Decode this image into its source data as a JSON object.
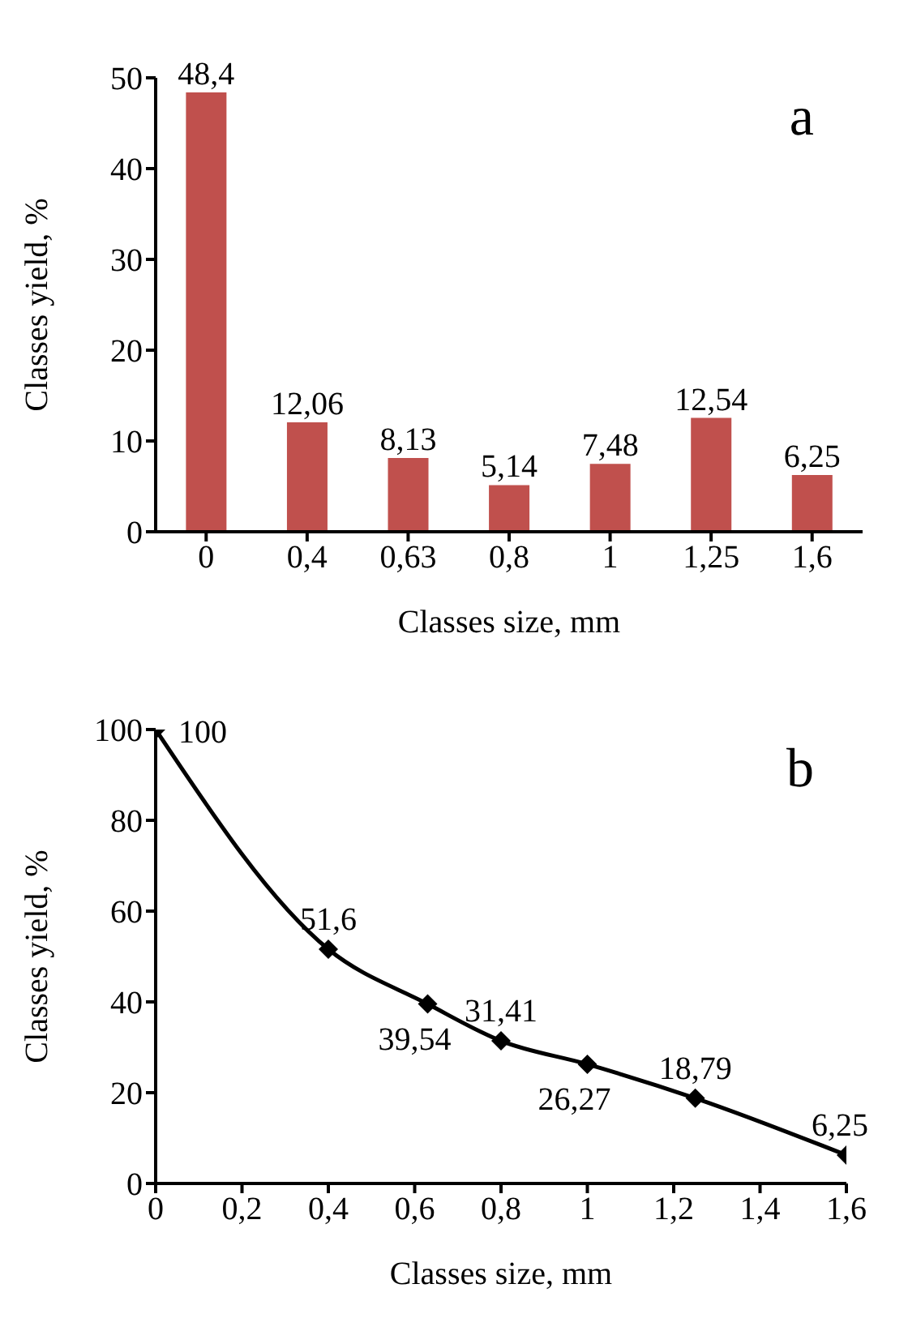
{
  "chart_data": [
    {
      "type": "bar",
      "title": "a",
      "xlabel": "Classes size, mm",
      "ylabel": "Classes yield, %",
      "categories": [
        "0",
        "0,4",
        "0,63",
        "0,8",
        "1",
        "1,25",
        "1,6"
      ],
      "values": [
        48.4,
        12.06,
        8.13,
        5.14,
        7.48,
        12.54,
        6.25
      ],
      "value_labels": [
        "48,4",
        "12,06",
        "8,13",
        "5,14",
        "7,48",
        "12,54",
        "6,25"
      ],
      "color": "#c0504d",
      "ylim": [
        0,
        50
      ],
      "yticks": [
        0,
        10,
        20,
        30,
        40,
        50
      ],
      "grid": false,
      "legend": false
    },
    {
      "type": "line",
      "title": "b",
      "xlabel": "Classes size, mm",
      "ylabel": "Classes yield, %",
      "x": [
        0,
        0.4,
        0.63,
        0.8,
        1,
        1.25,
        1.6
      ],
      "values": [
        100,
        51.6,
        39.54,
        31.41,
        26.27,
        18.79,
        6.25
      ],
      "value_labels": [
        "100",
        "51,6",
        "39,54",
        "31,41",
        "26,27",
        "18,79",
        "6,25"
      ],
      "color": "#000000",
      "marker": "diamond",
      "line_style": "solid",
      "xlim": [
        0,
        1.6
      ],
      "xticks": [
        0,
        {
          "value": 0.2,
          "label": "0,2"
        },
        {
          "value": 0.4,
          "label": "0,4"
        },
        {
          "value": 0.6,
          "label": "0,6"
        },
        {
          "value": 0.8,
          "label": "0,8"
        },
        1,
        {
          "value": 1.2,
          "label": "1,2"
        },
        {
          "value": 1.4,
          "label": "1,4"
        },
        {
          "value": 1.6,
          "label": "1,6"
        }
      ],
      "ylim": [
        0,
        100
      ],
      "yticks": [
        0,
        20,
        40,
        60,
        80,
        100
      ],
      "grid": false,
      "legend": false
    }
  ]
}
